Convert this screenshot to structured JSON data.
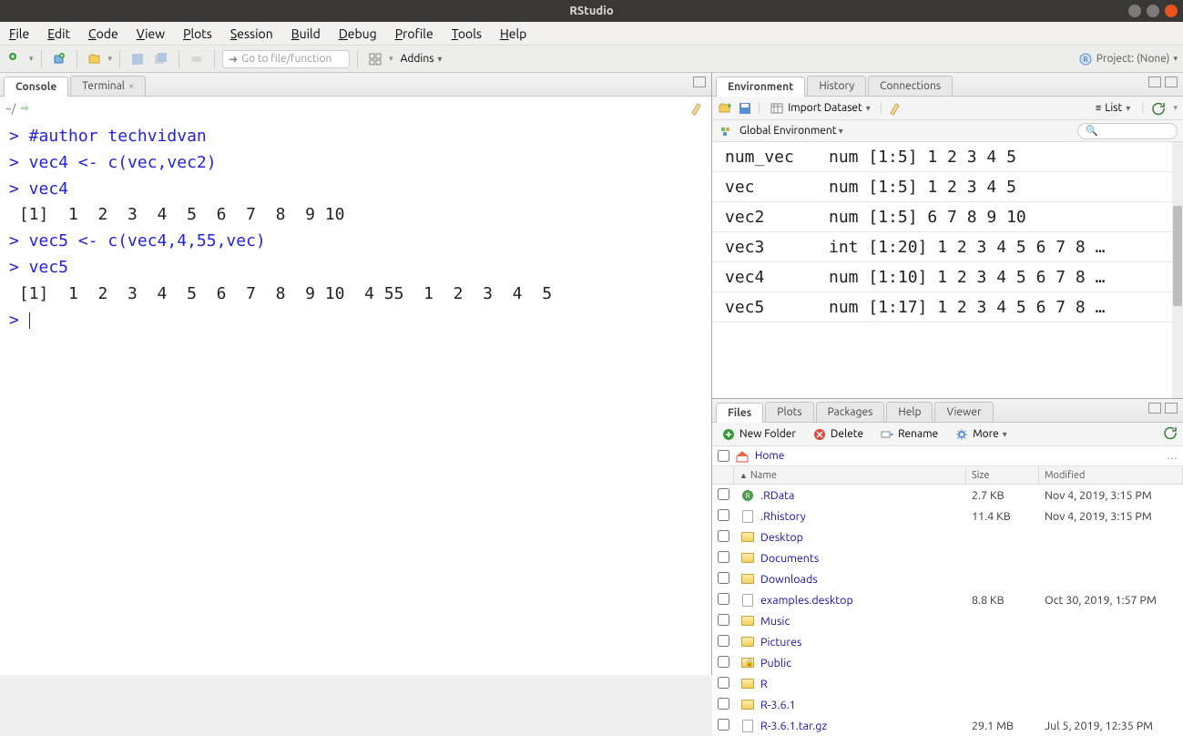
{
  "window": {
    "title": "RStudio"
  },
  "menus": [
    "File",
    "Edit",
    "Code",
    "View",
    "Plots",
    "Session",
    "Build",
    "Debug",
    "Profile",
    "Tools",
    "Help"
  ],
  "toolbar": {
    "goto_placeholder": "Go to file/function",
    "addins_label": "Addins",
    "project_label": "Project: (None)"
  },
  "left": {
    "tabs": {
      "console": "Console",
      "terminal": "Terminal"
    },
    "path": "~/",
    "console_lines": [
      {
        "t": "pr",
        "s": "> #author techvidvan"
      },
      {
        "t": "pr",
        "s": "> vec4 <- c(vec,vec2)"
      },
      {
        "t": "pr",
        "s": "> vec4"
      },
      {
        "t": "out",
        "s": " [1]  1  2  3  4  5  6  7  8  9 10"
      },
      {
        "t": "pr",
        "s": "> vec5 <- c(vec4,4,55,vec)"
      },
      {
        "t": "pr",
        "s": "> vec5"
      },
      {
        "t": "out",
        "s": " [1]  1  2  3  4  5  6  7  8  9 10  4 55  1  2  3  4  5"
      },
      {
        "t": "pr",
        "s": "> "
      }
    ]
  },
  "env": {
    "tabs": {
      "environment": "Environment",
      "history": "History",
      "connections": "Connections"
    },
    "import_label": "Import Dataset",
    "view_label": "List",
    "scope_label": "Global Environment",
    "vars": [
      {
        "name": "num_vec",
        "val": "num [1:5] 1 2 3 4 5"
      },
      {
        "name": "vec",
        "val": "num [1:5] 1 2 3 4 5"
      },
      {
        "name": "vec2",
        "val": "num [1:5] 6 7 8 9 10"
      },
      {
        "name": "vec3",
        "val": "int [1:20] 1 2 3 4 5 6 7 8 …"
      },
      {
        "name": "vec4",
        "val": "num [1:10] 1 2 3 4 5 6 7 8 …"
      },
      {
        "name": "vec5",
        "val": "num [1:17] 1 2 3 4 5 6 7 8 …"
      }
    ]
  },
  "files": {
    "tabs": {
      "files": "Files",
      "plots": "Plots",
      "packages": "Packages",
      "help": "Help",
      "viewer": "Viewer"
    },
    "toolbar": {
      "new_folder": "New Folder",
      "delete": "Delete",
      "rename": "Rename",
      "more": "More"
    },
    "breadcrumb": "Home",
    "columns": {
      "name": "Name",
      "size": "Size",
      "modified": "Modified"
    },
    "rows": [
      {
        "icon": "rdata",
        "name": ".RData",
        "size": "2.7 KB",
        "modified": "Nov 4, 2019, 3:15 PM"
      },
      {
        "icon": "file",
        "name": ".Rhistory",
        "size": "11.4 KB",
        "modified": "Nov 4, 2019, 3:15 PM"
      },
      {
        "icon": "folder",
        "name": "Desktop",
        "size": "",
        "modified": ""
      },
      {
        "icon": "folder",
        "name": "Documents",
        "size": "",
        "modified": ""
      },
      {
        "icon": "folder",
        "name": "Downloads",
        "size": "",
        "modified": ""
      },
      {
        "icon": "file",
        "name": "examples.desktop",
        "size": "8.8 KB",
        "modified": "Oct 30, 2019, 1:57 PM"
      },
      {
        "icon": "folder",
        "name": "Music",
        "size": "",
        "modified": ""
      },
      {
        "icon": "folder",
        "name": "Pictures",
        "size": "",
        "modified": ""
      },
      {
        "icon": "folder-lock",
        "name": "Public",
        "size": "",
        "modified": ""
      },
      {
        "icon": "folder",
        "name": "R",
        "size": "",
        "modified": ""
      },
      {
        "icon": "folder",
        "name": "R-3.6.1",
        "size": "",
        "modified": ""
      },
      {
        "icon": "file",
        "name": "R-3.6.1.tar.gz",
        "size": "29.1 MB",
        "modified": "Jul 5, 2019, 12:35 PM"
      }
    ]
  }
}
